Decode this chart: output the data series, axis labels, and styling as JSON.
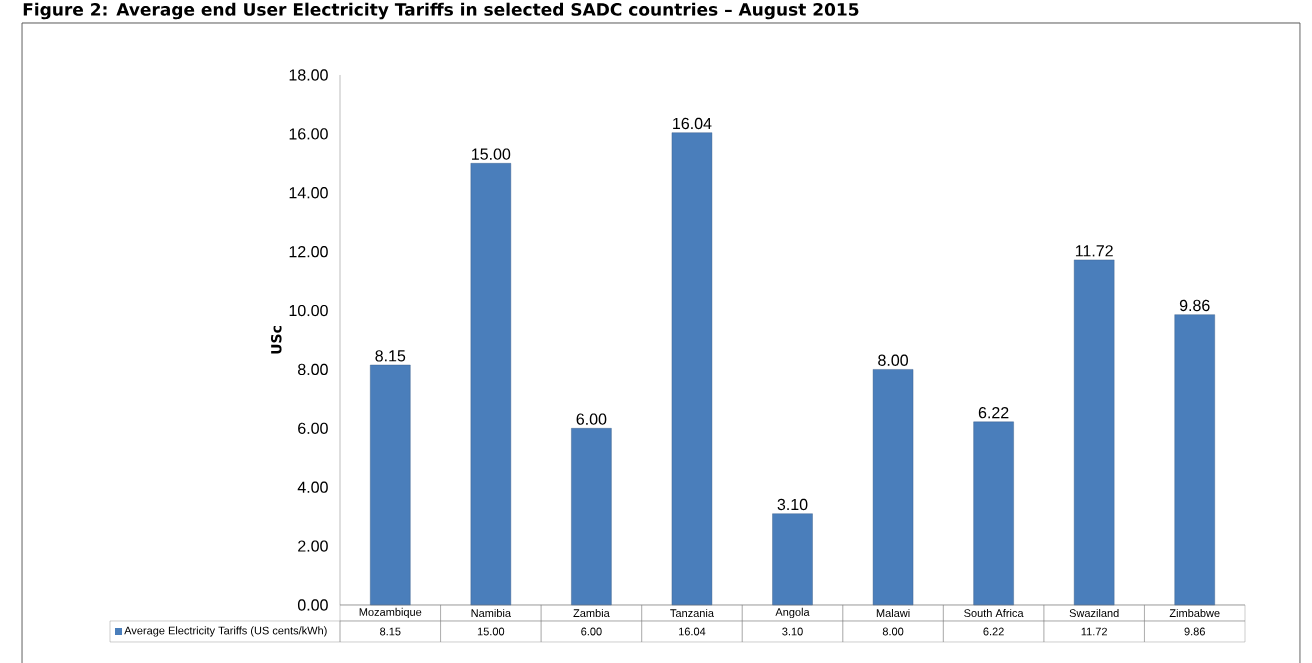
{
  "chart_data": {
    "type": "bar",
    "title": "Figure 2: Average end User Electricity Tariffs in selected SADC countries – August 2015",
    "ylabel": "USc",
    "categories": [
      "Mozambique",
      "Namibia",
      "Zambia",
      "Tanzania",
      "Angola",
      "Malawi",
      "South Africa",
      "Swaziland",
      "Zimbabwe"
    ],
    "series": [
      {
        "name": "Average Electricity Tariffs (US cents/kWh)",
        "color": "#4a7ebb",
        "values": [
          8.15,
          15.0,
          6.0,
          16.04,
          3.1,
          8.0,
          6.22,
          11.72,
          9.86
        ],
        "value_labels": [
          "8.15",
          "15.00",
          "6.00",
          "16.04",
          "3.10",
          "8.00",
          "6.22",
          "11.72",
          "9.86"
        ]
      }
    ],
    "ylim": [
      0,
      18
    ],
    "yticks": [
      {
        "value": 0,
        "label": "0.00"
      },
      {
        "value": 2,
        "label": "2.00"
      },
      {
        "value": 4,
        "label": "4.00"
      },
      {
        "value": 6,
        "label": "6.00"
      },
      {
        "value": 8,
        "label": "8.00"
      },
      {
        "value": 10,
        "label": "10.00"
      },
      {
        "value": 12,
        "label": "12.00"
      },
      {
        "value": 14,
        "label": "14.00"
      },
      {
        "value": 16,
        "label": "16.00"
      },
      {
        "value": 18,
        "label": "18.00"
      }
    ],
    "legend": "bottom",
    "grid": false
  }
}
